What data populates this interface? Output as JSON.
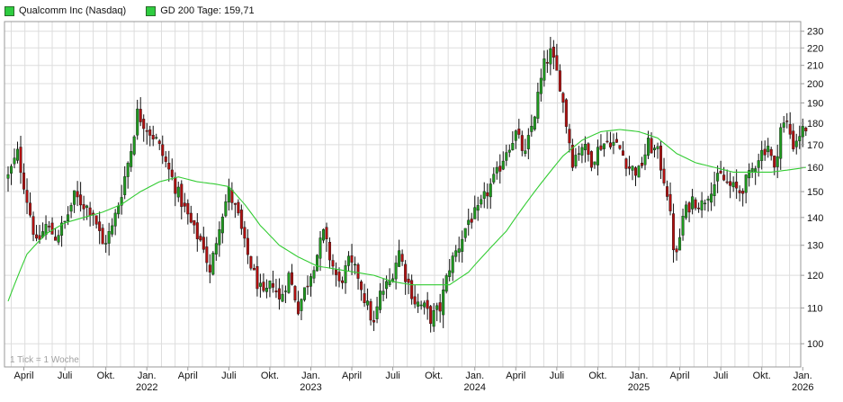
{
  "legend": {
    "price_label": "Qualcomm Inc (Nasdaq)",
    "sma_label": "GD 200 Tage: 159,71"
  },
  "note": "1 Tick = 1 Woche",
  "colors": {
    "up": "#1f9a1f",
    "down": "#b01010",
    "wick": "#111111",
    "sma": "#33cc33",
    "grid": "#dddddd",
    "axis": "#999999"
  },
  "chart_data": {
    "type": "candlestick",
    "yscale": "log",
    "ylim": [
      94,
      236
    ],
    "y_ticks": [
      100,
      110,
      120,
      130,
      140,
      150,
      160,
      170,
      180,
      190,
      200,
      210,
      220,
      230
    ],
    "x_ticks": [
      {
        "label": "April",
        "year": "",
        "week": 5
      },
      {
        "label": "Juli",
        "year": "",
        "week": 18
      },
      {
        "label": "Okt.",
        "year": "",
        "week": 31
      },
      {
        "label": "Jan.",
        "year": "2022",
        "week": 44
      },
      {
        "label": "April",
        "year": "",
        "week": 57
      },
      {
        "label": "Juli",
        "year": "",
        "week": 70
      },
      {
        "label": "Okt.",
        "year": "",
        "week": 83
      },
      {
        "label": "Jan.",
        "year": "2023",
        "week": 96
      },
      {
        "label": "April",
        "year": "",
        "week": 109
      },
      {
        "label": "Juli",
        "year": "",
        "week": 122
      },
      {
        "label": "Okt.",
        "year": "",
        "week": 135
      },
      {
        "label": "Jan.",
        "year": "2024",
        "week": 148
      },
      {
        "label": "April",
        "year": "",
        "week": 161
      },
      {
        "label": "Juli",
        "year": "",
        "week": 174
      },
      {
        "label": "Okt.",
        "year": "",
        "week": 187
      },
      {
        "label": "Jan.",
        "year": "2025",
        "week": 200
      },
      {
        "label": "April",
        "year": "",
        "week": 213
      },
      {
        "label": "Juli",
        "year": "",
        "week": 226
      },
      {
        "label": "Okt.",
        "year": "",
        "week": 239
      },
      {
        "label": "Jan.",
        "year": "2026",
        "week": 252
      }
    ],
    "close_anchors": [
      [
        0,
        156
      ],
      [
        3,
        166
      ],
      [
        6,
        147
      ],
      [
        9,
        130
      ],
      [
        12,
        137
      ],
      [
        15,
        133
      ],
      [
        18,
        138
      ],
      [
        21,
        148
      ],
      [
        24,
        145
      ],
      [
        27,
        142
      ],
      [
        30,
        130
      ],
      [
        33,
        136
      ],
      [
        36,
        150
      ],
      [
        39,
        168
      ],
      [
        41,
        185
      ],
      [
        44,
        178
      ],
      [
        47,
        172
      ],
      [
        50,
        162
      ],
      [
        53,
        152
      ],
      [
        56,
        143
      ],
      [
        59,
        135
      ],
      [
        62,
        130
      ],
      [
        64,
        120
      ],
      [
        67,
        138
      ],
      [
        70,
        150
      ],
      [
        73,
        140
      ],
      [
        75,
        130
      ],
      [
        78,
        120
      ],
      [
        81,
        113
      ],
      [
        84,
        118
      ],
      [
        86,
        112
      ],
      [
        89,
        120
      ],
      [
        92,
        110
      ],
      [
        95,
        118
      ],
      [
        98,
        127
      ],
      [
        100,
        134
      ],
      [
        102,
        126
      ],
      [
        105,
        117
      ],
      [
        108,
        124
      ],
      [
        111,
        120
      ],
      [
        113,
        113
      ],
      [
        116,
        105
      ],
      [
        118,
        114
      ],
      [
        121,
        118
      ],
      [
        124,
        128
      ],
      [
        126,
        120
      ],
      [
        129,
        112
      ],
      [
        132,
        110
      ],
      [
        134,
        107
      ],
      [
        137,
        110
      ],
      [
        140,
        123
      ],
      [
        143,
        130
      ],
      [
        146,
        139
      ],
      [
        149,
        142
      ],
      [
        152,
        150
      ],
      [
        155,
        157
      ],
      [
        158,
        168
      ],
      [
        161,
        175
      ],
      [
        164,
        165
      ],
      [
        167,
        185
      ],
      [
        170,
        210
      ],
      [
        172,
        217
      ],
      [
        175,
        200
      ],
      [
        177,
        180
      ],
      [
        179,
        163
      ],
      [
        182,
        170
      ],
      [
        185,
        163
      ],
      [
        188,
        170
      ],
      [
        191,
        172
      ],
      [
        194,
        168
      ],
      [
        197,
        160
      ],
      [
        200,
        158
      ],
      [
        203,
        170
      ],
      [
        206,
        166
      ],
      [
        209,
        150
      ],
      [
        211,
        130
      ],
      [
        212,
        126
      ],
      [
        214,
        140
      ],
      [
        217,
        147
      ],
      [
        220,
        145
      ],
      [
        223,
        152
      ],
      [
        226,
        156
      ],
      [
        229,
        152
      ],
      [
        232,
        150
      ],
      [
        235,
        156
      ],
      [
        238,
        165
      ],
      [
        241,
        170
      ],
      [
        243,
        158
      ],
      [
        245,
        178
      ],
      [
        247,
        180
      ],
      [
        249,
        170
      ],
      [
        251,
        175
      ],
      [
        253,
        178
      ]
    ],
    "sma_anchors": [
      [
        0,
        112
      ],
      [
        6,
        127
      ],
      [
        12,
        134
      ],
      [
        18,
        138
      ],
      [
        24,
        140
      ],
      [
        30,
        142
      ],
      [
        36,
        145
      ],
      [
        42,
        150
      ],
      [
        48,
        154
      ],
      [
        54,
        156
      ],
      [
        60,
        154
      ],
      [
        66,
        153
      ],
      [
        70,
        152
      ],
      [
        75,
        145
      ],
      [
        80,
        137
      ],
      [
        86,
        130
      ],
      [
        92,
        126
      ],
      [
        98,
        123
      ],
      [
        104,
        122
      ],
      [
        110,
        121
      ],
      [
        116,
        120
      ],
      [
        122,
        118
      ],
      [
        128,
        117
      ],
      [
        134,
        117
      ],
      [
        140,
        117
      ],
      [
        146,
        121
      ],
      [
        152,
        128
      ],
      [
        158,
        135
      ],
      [
        164,
        145
      ],
      [
        170,
        155
      ],
      [
        176,
        165
      ],
      [
        182,
        172
      ],
      [
        188,
        176
      ],
      [
        194,
        177
      ],
      [
        200,
        176
      ],
      [
        206,
        173
      ],
      [
        212,
        166
      ],
      [
        218,
        162
      ],
      [
        224,
        160
      ],
      [
        230,
        158
      ],
      [
        236,
        158
      ],
      [
        242,
        158
      ],
      [
        248,
        159
      ],
      [
        253,
        160
      ]
    ],
    "weeks": 254
  }
}
